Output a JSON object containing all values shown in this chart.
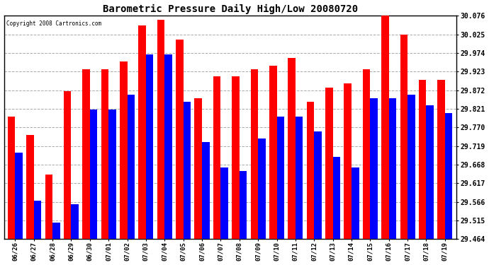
{
  "title": "Barometric Pressure Daily High/Low 20080720",
  "copyright": "Copyright 2008 Cartronics.com",
  "dates": [
    "06/26",
    "06/27",
    "06/28",
    "06/29",
    "06/30",
    "07/01",
    "07/02",
    "07/03",
    "07/04",
    "07/05",
    "07/06",
    "07/07",
    "07/08",
    "07/09",
    "07/10",
    "07/11",
    "07/12",
    "07/13",
    "07/14",
    "07/15",
    "07/16",
    "07/17",
    "07/18",
    "07/19"
  ],
  "highs": [
    29.8,
    29.75,
    29.64,
    29.87,
    29.93,
    29.93,
    29.95,
    30.05,
    30.065,
    30.01,
    29.85,
    29.91,
    29.91,
    29.93,
    29.94,
    29.96,
    29.84,
    29.88,
    29.89,
    29.93,
    30.076,
    30.025,
    29.9,
    29.9
  ],
  "lows": [
    29.7,
    29.57,
    29.51,
    29.56,
    29.82,
    29.82,
    29.86,
    29.97,
    29.97,
    29.84,
    29.73,
    29.66,
    29.65,
    29.74,
    29.8,
    29.8,
    29.76,
    29.69,
    29.66,
    29.85,
    29.85,
    29.86,
    29.83,
    29.81
  ],
  "ymin": 29.464,
  "ymax": 30.076,
  "yticks": [
    30.076,
    30.025,
    29.974,
    29.923,
    29.872,
    29.821,
    29.77,
    29.719,
    29.668,
    29.617,
    29.566,
    29.515,
    29.464
  ],
  "high_color": "#ff0000",
  "low_color": "#0000ff",
  "bg_color": "#ffffff",
  "grid_color": "#aaaaaa",
  "title_fontsize": 10,
  "bar_width": 0.4
}
